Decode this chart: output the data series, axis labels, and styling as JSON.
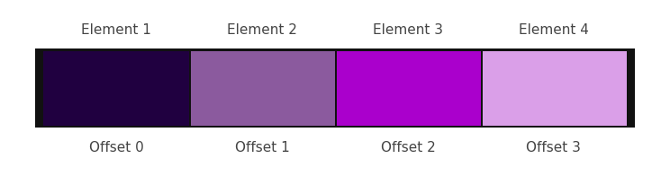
{
  "elements": [
    "Element 1",
    "Element 2",
    "Element 3",
    "Element 4"
  ],
  "offsets": [
    "Offset 0",
    "Offset 1",
    "Offset 2",
    "Offset 3"
  ],
  "bar_colors": [
    "#200040",
    "#8b5a9e",
    "#aa00cc",
    "#da9fe8"
  ],
  "background_color": "#ffffff",
  "bar_outline_color": "#111111",
  "label_fontsize": 11,
  "label_color": "#444444"
}
